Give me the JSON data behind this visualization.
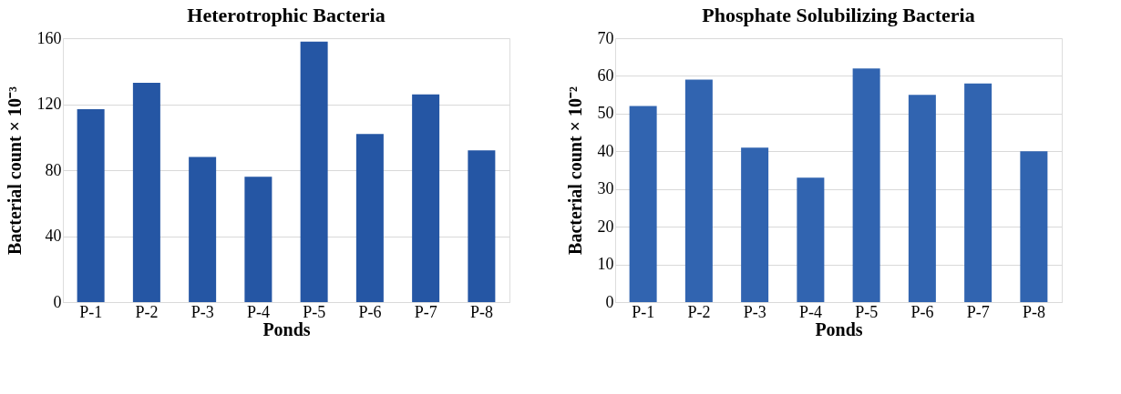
{
  "chart_data": [
    {
      "type": "bar",
      "title": "Heterotrophic Bacteria",
      "xlabel": "Ponds",
      "ylabel": "Bacterial count × 10⁻³",
      "categories": [
        "P-1",
        "P-2",
        "P-3",
        "P-4",
        "P-5",
        "P-6",
        "P-7",
        "P-8"
      ],
      "series": [
        {
          "color": "#2556a4",
          "values": [
            117,
            133,
            88,
            76,
            158,
            102,
            126,
            92
          ]
        }
      ],
      "ylim": [
        0,
        160
      ],
      "yticks": [
        0,
        40,
        80,
        120,
        160
      ],
      "grid": "y"
    },
    {
      "type": "bar",
      "title": "Phosphate Solubilizing Bacteria",
      "xlabel": "Ponds",
      "ylabel": "Bacterial count × 10⁻²",
      "categories": [
        "P-1",
        "P-2",
        "P-3",
        "P-4",
        "P-5",
        "P-6",
        "P-7",
        "P-8"
      ],
      "series": [
        {
          "color": "#3164b0",
          "values": [
            52,
            59,
            41,
            33,
            62,
            55,
            58,
            40
          ]
        }
      ],
      "ylim": [
        0,
        70
      ],
      "yticks": [
        0,
        10,
        20,
        30,
        40,
        50,
        60,
        70
      ],
      "grid": "y"
    }
  ]
}
